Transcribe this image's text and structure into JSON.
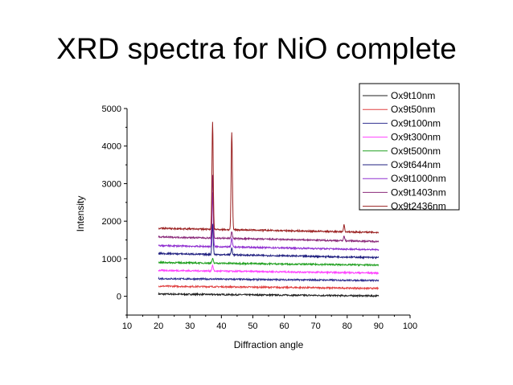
{
  "slide": {
    "title": "XRD spectra for NiO complete"
  },
  "chart_data": {
    "type": "line",
    "title": "",
    "xlabel": "Diffraction angle",
    "ylabel": "Intensity",
    "xlim": [
      10,
      100
    ],
    "ylim": [
      -500,
      5000
    ],
    "xticks": [
      10,
      20,
      30,
      40,
      50,
      60,
      70,
      80,
      90,
      100
    ],
    "yticks": [
      0,
      1000,
      2000,
      3000,
      4000,
      5000
    ],
    "grid": false,
    "legend_position": "top-right",
    "x_range": [
      20,
      90
    ],
    "series": [
      {
        "name": "Ox9t10nm",
        "color": "#202020",
        "start": 60,
        "end": 10,
        "peaks": []
      },
      {
        "name": "Ox9t50nm",
        "color": "#e04040",
        "start": 270,
        "end": 210,
        "peaks": []
      },
      {
        "name": "Ox9t100nm",
        "color": "#303090",
        "start": 470,
        "end": 420,
        "peaks": []
      },
      {
        "name": "Ox9t300nm",
        "color": "#ff40ff",
        "start": 690,
        "end": 620,
        "peaks": [
          [
            37.2,
            150
          ]
        ]
      },
      {
        "name": "Ox9t500nm",
        "color": "#20a020",
        "start": 900,
        "end": 830,
        "peaks": [
          [
            37.2,
            120
          ]
        ]
      },
      {
        "name": "Ox9t644nm",
        "color": "#202080",
        "start": 1140,
        "end": 1030,
        "peaks": [
          [
            37.2,
            800
          ],
          [
            43.3,
            180
          ]
        ]
      },
      {
        "name": "Ox9t1000nm",
        "color": "#9030d0",
        "start": 1350,
        "end": 1240,
        "peaks": [
          [
            37.2,
            1450
          ],
          [
            43.3,
            220
          ]
        ]
      },
      {
        "name": "Ox9t1403nm",
        "color": "#8a2a7a",
        "start": 1580,
        "end": 1460,
        "peaks": [
          [
            37.2,
            1700
          ],
          [
            43.3,
            180
          ],
          [
            79,
            120
          ]
        ]
      },
      {
        "name": "Ox9t2436nm",
        "color": "#9a2020",
        "start": 1810,
        "end": 1700,
        "peaks": [
          [
            37.2,
            2850
          ],
          [
            43.3,
            2600
          ],
          [
            79,
            180
          ]
        ]
      }
    ]
  }
}
